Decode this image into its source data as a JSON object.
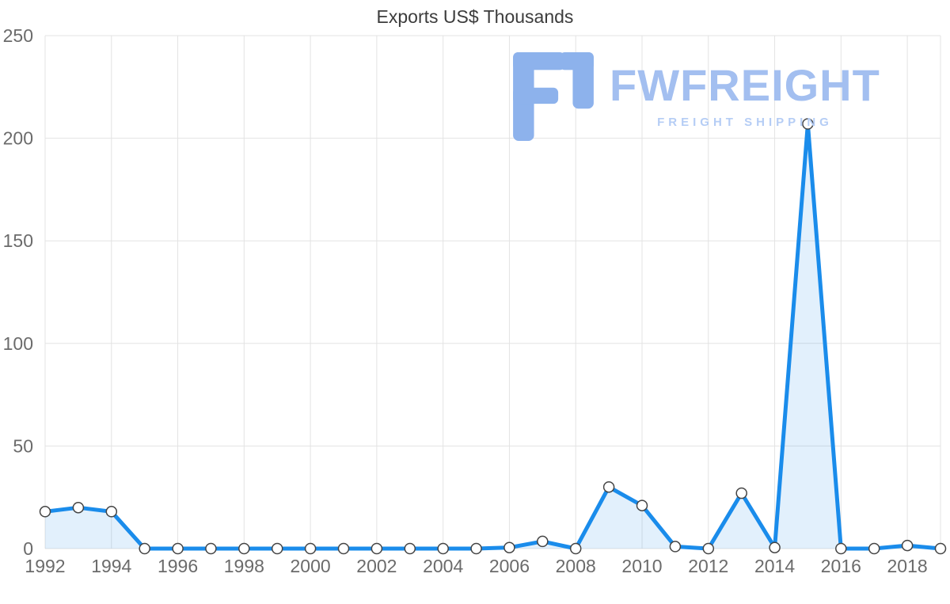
{
  "title": "Exports US$ Thousands",
  "watermark": {
    "brand": "FWFREIGHT",
    "tagline": "FREIGHT SHIPPING",
    "logo_color": "#8db2ec",
    "text_color": "#a3bff0"
  },
  "chart_data": {
    "type": "area",
    "title": "Exports US$ Thousands",
    "x": [
      1992,
      1993,
      1994,
      1995,
      1996,
      1997,
      1998,
      1999,
      2000,
      2001,
      2002,
      2003,
      2004,
      2005,
      2006,
      2007,
      2008,
      2009,
      2010,
      2011,
      2012,
      2013,
      2014,
      2015,
      2016,
      2017,
      2018,
      2019
    ],
    "values": [
      18,
      20,
      18,
      0,
      0,
      0,
      0,
      0,
      0,
      0,
      0,
      0,
      0,
      0,
      0.5,
      3.5,
      0,
      30,
      21,
      1,
      0,
      27,
      0.5,
      207,
      0,
      0,
      1.5,
      0
    ],
    "ylim": [
      0,
      250
    ],
    "yticks": [
      0,
      50,
      100,
      150,
      200,
      250
    ],
    "xtick_years": [
      1992,
      1994,
      1996,
      1998,
      2000,
      2002,
      2004,
      2006,
      2008,
      2010,
      2012,
      2014,
      2016,
      2018
    ],
    "xlabel": "",
    "ylabel": "",
    "grid": true,
    "legend": "none",
    "line_color": "#1a8ceb",
    "fill_color": "rgba(30,140,235,0.13)",
    "marker_fill": "#ffffff",
    "marker_stroke": "#444444",
    "grid_color": "#e3e3e3",
    "tick_label_color": "#6b6b6b"
  }
}
